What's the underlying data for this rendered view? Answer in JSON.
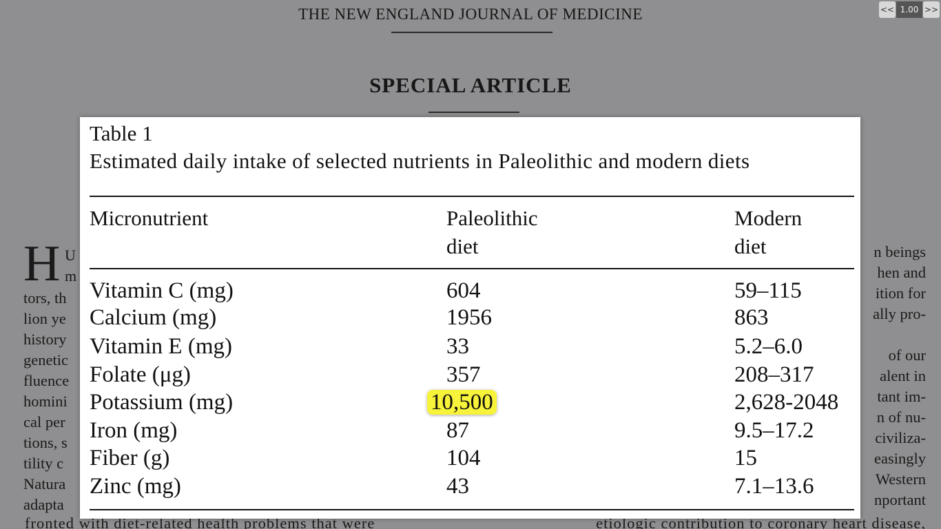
{
  "journal": {
    "header": "THE NEW ENGLAND JOURNAL OF MEDICINE",
    "section_title": "SPECIAL ARTICLE",
    "drop_cap": "H",
    "drop_cap_rest": [
      "U",
      "m"
    ],
    "left_column_lines": [
      "tors, th",
      "lion ye",
      "history",
      "genetic",
      "fluence",
      "homini",
      "cal per",
      "tions, s",
      "tility c",
      "Natura",
      "adapta"
    ],
    "right_column_lines": [
      "n beings",
      "hen and",
      "ition for",
      "ally pro-",
      "of our",
      "alent in",
      "tant im-",
      "n of nu-",
      "civiliza-",
      "easingly",
      "Western",
      "nportant"
    ],
    "bottom_left": "fronted with diet-related health problems that were",
    "bottom_right": "etiologic contribution to coronary heart disease,"
  },
  "zoom": {
    "prev_label": "<<",
    "value": "1.00",
    "next_label": ">>"
  },
  "table": {
    "label": "Table 1",
    "caption": "Estimated daily intake of selected nutrients in Paleolithic and modern diets",
    "headers": [
      {
        "line1": "Micronutrient",
        "line2": ""
      },
      {
        "line1": "Paleolithic",
        "line2": "diet"
      },
      {
        "line1": "Modern",
        "line2": "diet"
      }
    ],
    "rows": [
      {
        "nutrient": "Vitamin C (mg)",
        "paleolithic": "604",
        "modern": "59–115"
      },
      {
        "nutrient": "Calcium (mg)",
        "paleolithic": "1956",
        "modern": "863"
      },
      {
        "nutrient": "Vitamin E (mg)",
        "paleolithic": "33",
        "modern": "5.2–6.0"
      },
      {
        "nutrient": "Folate (μg)",
        "paleolithic": "357",
        "modern": "208–317"
      },
      {
        "nutrient": "Potassium (mg)",
        "paleolithic": "10,500",
        "modern": "2,628-2048"
      },
      {
        "nutrient": "Iron (mg)",
        "paleolithic": "87",
        "modern": "9.5–17.2"
      },
      {
        "nutrient": "Fiber (g)",
        "paleolithic": "104",
        "modern": "15"
      },
      {
        "nutrient": "Zinc (mg)",
        "paleolithic": "43",
        "modern": "7.1–13.6"
      }
    ],
    "highlight_color": "#f7f23a"
  }
}
